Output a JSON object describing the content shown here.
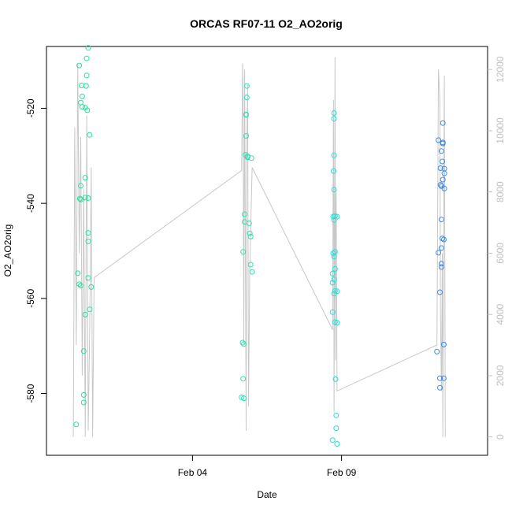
{
  "chart_data": {
    "type": "scatter",
    "title": "ORCAS RF07-11 O2_AO2orig",
    "xlabel": "Date",
    "ylabel": "O2_AO2orig",
    "x_ticks": [
      {
        "label": "Feb 04",
        "value": 4
      },
      {
        "label": "Feb 09",
        "value": 9
      }
    ],
    "xlim": [
      -0.9,
      13.9
    ],
    "ylim": [
      -593,
      -507
    ],
    "y_ticks": [
      -580,
      -560,
      -540,
      -520
    ],
    "right_axis": {
      "ylim": [
        -600,
        12750
      ],
      "ticks": [
        0,
        2000,
        4000,
        6000,
        8000,
        10000,
        12000
      ],
      "color": "#c0c0c0"
    },
    "grid": false,
    "legend": "none",
    "colors": {
      "RF07": "#21E39A",
      "RF08": "#2BE2B4",
      "RF09": "#2DDCD5",
      "RF10": "#3A8BE8",
      "altitude": "#c8c8c8"
    },
    "series": [
      {
        "color_key": "RF07",
        "points": [
          [
            0.1,
            -586.5
          ],
          [
            0.15,
            -554.7
          ],
          [
            0.2,
            -557.0
          ],
          [
            0.2,
            -511.0
          ],
          [
            0.22,
            -539.0
          ],
          [
            0.25,
            -557.3
          ],
          [
            0.25,
            -536.3
          ],
          [
            0.25,
            -539.2
          ],
          [
            0.25,
            -518.8
          ],
          [
            0.28,
            -515.2
          ],
          [
            0.3,
            -517.5
          ],
          [
            0.3,
            -519.7
          ],
          [
            0.35,
            -580.3
          ],
          [
            0.35,
            -581.9
          ],
          [
            0.35,
            -571.1
          ],
          [
            0.4,
            -563.4
          ],
          [
            0.4,
            -519.9
          ],
          [
            0.4,
            -538.8
          ],
          [
            0.4,
            -534.6
          ],
          [
            0.43,
            -515.3
          ],
          [
            0.45,
            -509.5
          ],
          [
            0.45,
            -513.1
          ],
          [
            0.47,
            -520.4
          ],
          [
            0.5,
            -555.7
          ],
          [
            0.5,
            -546.2
          ],
          [
            0.5,
            -548.0
          ],
          [
            0.5,
            -538.9
          ],
          [
            0.5,
            -507.3
          ],
          [
            0.55,
            -562.3
          ],
          [
            0.55,
            -525.6
          ],
          [
            0.6,
            -557.6
          ]
        ]
      },
      {
        "color_key": "RF08",
        "points": [
          [
            5.65,
            -580.8
          ],
          [
            5.68,
            -569.3
          ],
          [
            5.7,
            -576.9
          ],
          [
            5.7,
            -550.2
          ],
          [
            5.72,
            -581.0
          ],
          [
            5.72,
            -569.6
          ],
          [
            5.75,
            -543.9
          ],
          [
            5.75,
            -542.3
          ],
          [
            5.77,
            -529.8
          ],
          [
            5.8,
            -525.8
          ],
          [
            5.8,
            -521.3
          ],
          [
            5.8,
            -521.4
          ],
          [
            5.82,
            -517.7
          ],
          [
            5.82,
            -515.3
          ],
          [
            5.85,
            -530.3
          ],
          [
            5.85,
            -530.1
          ],
          [
            5.9,
            -544.2
          ],
          [
            5.92,
            -546.3
          ],
          [
            5.95,
            -547.0
          ],
          [
            5.95,
            -552.9
          ],
          [
            5.98,
            -530.5
          ],
          [
            6.0,
            -554.4
          ]
        ]
      },
      {
        "color_key": "RF09",
        "points": [
          [
            8.7,
            -589.8
          ],
          [
            8.7,
            -562.9
          ],
          [
            8.7,
            -556.7
          ],
          [
            8.7,
            -554.8
          ],
          [
            8.72,
            -550.5
          ],
          [
            8.72,
            -542.8
          ],
          [
            8.73,
            -533.2
          ],
          [
            8.75,
            -559.0
          ],
          [
            8.75,
            -556.0
          ],
          [
            8.75,
            -551.2
          ],
          [
            8.75,
            -543.5
          ],
          [
            8.75,
            -537.1
          ],
          [
            8.75,
            -521.0
          ],
          [
            8.75,
            -522.2
          ],
          [
            8.75,
            -529.9
          ],
          [
            8.78,
            -565.0
          ],
          [
            8.78,
            -558.4
          ],
          [
            8.78,
            -553.8
          ],
          [
            8.78,
            -550.2
          ],
          [
            8.78,
            -542.7
          ],
          [
            8.8,
            -577.0
          ],
          [
            8.82,
            -584.6
          ],
          [
            8.82,
            -587.3
          ],
          [
            8.85,
            -590.6
          ],
          [
            8.85,
            -565.1
          ],
          [
            8.85,
            -558.5
          ],
          [
            8.85,
            -542.8
          ]
        ]
      },
      {
        "color_key": "RF10",
        "points": [
          [
            12.2,
            -571.2
          ],
          [
            12.25,
            -550.4
          ],
          [
            12.25,
            -526.7
          ],
          [
            12.3,
            -576.8
          ],
          [
            12.3,
            -578.8
          ],
          [
            12.3,
            -558.7
          ],
          [
            12.32,
            -536.1
          ],
          [
            12.32,
            -532.6
          ],
          [
            12.35,
            -552.7
          ],
          [
            12.35,
            -553.4
          ],
          [
            12.35,
            -549.4
          ],
          [
            12.35,
            -543.4
          ],
          [
            12.35,
            -536.4
          ],
          [
            12.35,
            -529.0
          ],
          [
            12.38,
            -547.4
          ],
          [
            12.38,
            -531.2
          ],
          [
            12.4,
            -523.1
          ],
          [
            12.4,
            -527.2
          ],
          [
            12.4,
            -527.4
          ],
          [
            12.4,
            -535.0
          ],
          [
            12.43,
            -576.8
          ],
          [
            12.43,
            -569.7
          ],
          [
            12.43,
            -547.6
          ],
          [
            12.45,
            -536.9
          ],
          [
            12.45,
            -533.7
          ],
          [
            12.45,
            -532.7
          ]
        ]
      }
    ],
    "altitude_line": {
      "axis": "right",
      "points": [
        [
          0.0,
          0
        ],
        [
          0.05,
          10100
        ],
        [
          0.1,
          3000
        ],
        [
          0.15,
          12200
        ],
        [
          0.2,
          6000
        ],
        [
          0.25,
          9800
        ],
        [
          0.3,
          2000
        ],
        [
          0.35,
          8100
        ],
        [
          0.4,
          0
        ],
        [
          0.45,
          10500
        ],
        [
          0.5,
          200
        ],
        [
          0.55,
          3500
        ],
        [
          0.6,
          8800
        ],
        [
          0.65,
          0
        ],
        [
          0.7,
          5200
        ],
        [
          5.65,
          8700
        ],
        [
          5.68,
          12200
        ],
        [
          5.7,
          11000
        ],
        [
          5.72,
          3000
        ],
        [
          5.75,
          12000
        ],
        [
          5.77,
          7000
        ],
        [
          5.8,
          200
        ],
        [
          5.82,
          9500
        ],
        [
          5.85,
          11500
        ],
        [
          5.88,
          1000
        ],
        [
          5.92,
          5500
        ],
        [
          6.0,
          8800
        ],
        [
          8.7,
          3500
        ],
        [
          8.73,
          11000
        ],
        [
          8.75,
          800
        ],
        [
          8.78,
          12400
        ],
        [
          8.8,
          2500
        ],
        [
          8.82,
          8000
        ],
        [
          8.85,
          1500
        ],
        [
          12.2,
          3000
        ],
        [
          12.25,
          12000
        ],
        [
          12.3,
          11000
        ],
        [
          12.32,
          4000
        ],
        [
          12.35,
          1500
        ],
        [
          12.38,
          6000
        ],
        [
          12.4,
          0
        ],
        [
          12.43,
          7500
        ],
        [
          12.45,
          11800
        ],
        [
          12.48,
          0
        ]
      ]
    }
  }
}
